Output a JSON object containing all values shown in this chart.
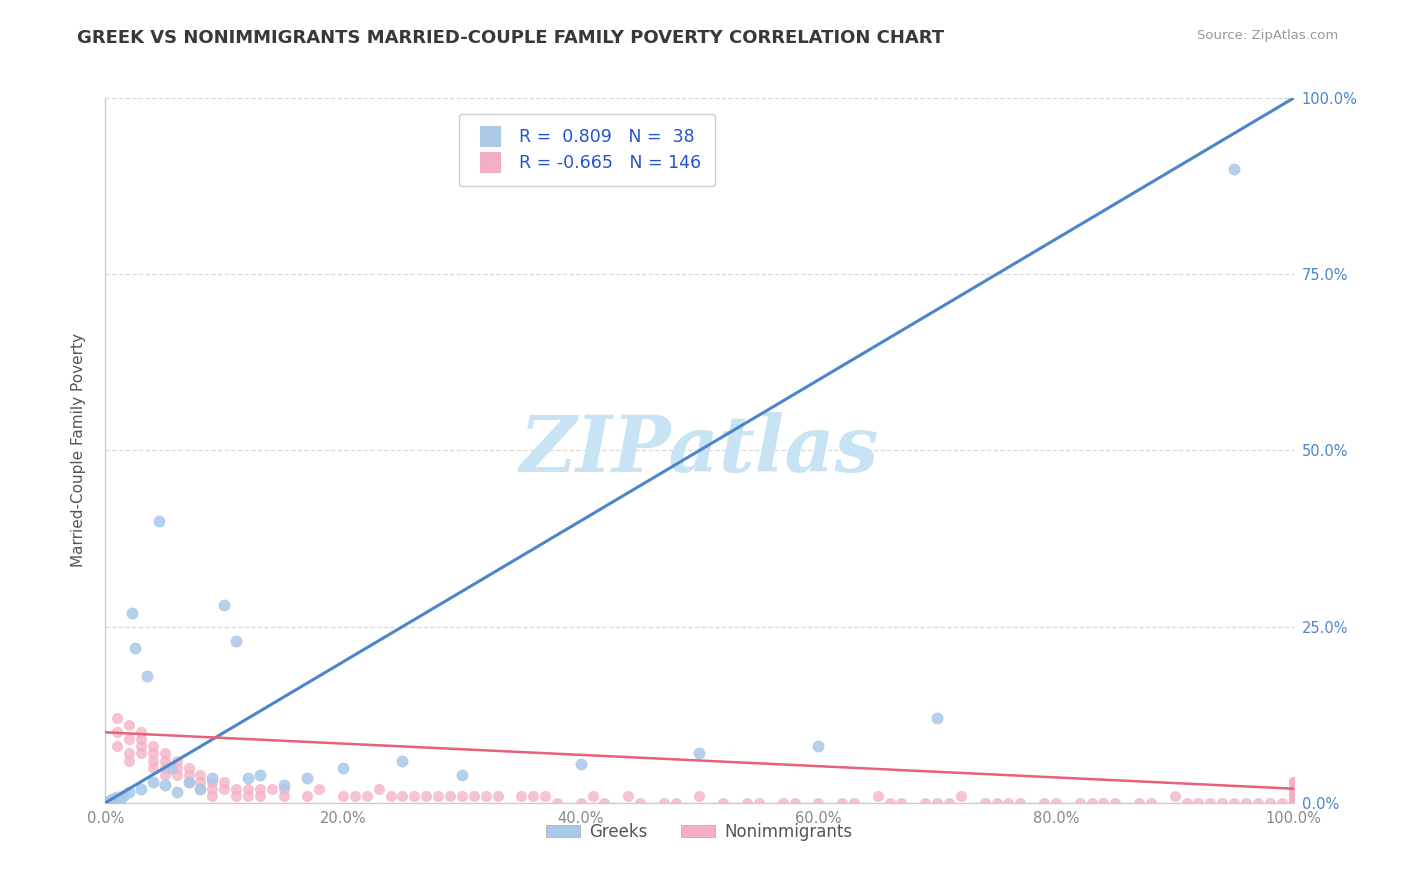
{
  "title": "GREEK VS NONIMMIGRANTS MARRIED-COUPLE FAMILY POVERTY CORRELATION CHART",
  "source": "Source: ZipAtlas.com",
  "ylabel": "Married-Couple Family Poverty",
  "xlim": [
    0,
    100
  ],
  "ylim": [
    0,
    100
  ],
  "xticks": [
    0,
    20,
    40,
    60,
    80,
    100
  ],
  "yticks": [
    0,
    25,
    50,
    75,
    100
  ],
  "xticklabels": [
    "0.0%",
    "20.0%",
    "40.0%",
    "60.0%",
    "80.0%",
    "100.0%"
  ],
  "yticklabels": [
    "0.0%",
    "25.0%",
    "50.0%",
    "75.0%",
    "100.0%"
  ],
  "greek_R": 0.809,
  "greek_N": 38,
  "nonimm_R": -0.665,
  "nonimm_N": 146,
  "greek_color": "#aac8e8",
  "nonimm_color": "#f5afc5",
  "greek_line_color": "#4a86c8",
  "nonimm_line_color": "#e8607a",
  "background_color": "#ffffff",
  "grid_color": "#d8d8d8",
  "title_color": "#383838",
  "axis_label_color": "#555555",
  "tick_color_x": "#888888",
  "tick_color_y": "#4a86c8",
  "legend_R_color": "#2255cc",
  "watermark_color": "#c8e4f4",
  "greek_line_x": [
    0,
    100
  ],
  "greek_line_y": [
    0,
    100
  ],
  "nonimm_line_x": [
    0,
    100
  ],
  "nonimm_line_y": [
    10,
    2
  ],
  "greek_x": [
    0.3,
    0.4,
    0.5,
    0.6,
    0.7,
    0.8,
    0.9,
    1.0,
    1.1,
    1.2,
    1.5,
    2.0,
    2.2,
    2.5,
    3.0,
    3.5,
    4.0,
    4.5,
    5.0,
    5.5,
    6.0,
    7.0,
    8.0,
    9.0,
    10.0,
    11.0,
    12.0,
    13.0,
    15.0,
    17.0,
    20.0,
    25.0,
    30.0,
    40.0,
    50.0,
    60.0,
    70.0,
    95.0
  ],
  "greek_y": [
    0.2,
    0.3,
    0.4,
    0.5,
    0.3,
    0.6,
    0.4,
    0.8,
    0.5,
    0.6,
    1.0,
    1.5,
    27.0,
    22.0,
    2.0,
    18.0,
    3.0,
    40.0,
    2.5,
    5.0,
    1.5,
    3.0,
    2.0,
    3.5,
    28.0,
    23.0,
    3.5,
    4.0,
    2.5,
    3.5,
    5.0,
    6.0,
    4.0,
    5.5,
    7.0,
    8.0,
    12.0,
    90.0
  ],
  "nonimm_x": [
    1,
    1,
    1,
    2,
    2,
    2,
    2,
    3,
    3,
    3,
    3,
    4,
    4,
    4,
    4,
    5,
    5,
    5,
    5,
    6,
    6,
    6,
    7,
    7,
    7,
    8,
    8,
    8,
    9,
    9,
    9,
    10,
    10,
    11,
    11,
    12,
    12,
    13,
    13,
    14,
    15,
    15,
    17,
    18,
    20,
    21,
    22,
    23,
    24,
    25,
    26,
    27,
    28,
    29,
    30,
    31,
    32,
    33,
    35,
    36,
    37,
    38,
    40,
    41,
    42,
    44,
    45,
    47,
    48,
    50,
    52,
    54,
    55,
    57,
    58,
    60,
    62,
    63,
    65,
    66,
    67,
    69,
    70,
    71,
    72,
    74,
    75,
    76,
    77,
    79,
    80,
    82,
    83,
    84,
    85,
    87,
    88,
    90,
    91,
    92,
    93,
    94,
    95,
    96,
    97,
    98,
    99,
    100,
    100,
    100,
    100,
    100,
    100,
    100,
    100,
    100,
    100,
    100,
    100,
    100,
    100,
    100,
    100,
    100,
    100,
    100,
    100,
    100,
    100,
    100,
    100,
    100,
    100,
    100,
    100,
    100,
    100,
    100,
    100,
    100,
    100,
    100,
    100,
    100,
    100,
    100
  ],
  "nonimm_y": [
    8,
    10,
    12,
    7,
    9,
    11,
    6,
    8,
    10,
    7,
    9,
    5,
    7,
    8,
    6,
    5,
    6,
    7,
    4,
    5,
    4,
    6,
    4,
    5,
    3,
    4,
    3,
    2,
    3,
    2,
    1,
    2,
    3,
    2,
    1,
    2,
    1,
    2,
    1,
    2,
    1,
    2,
    1,
    2,
    1,
    1,
    1,
    2,
    1,
    1,
    1,
    1,
    1,
    1,
    1,
    1,
    1,
    1,
    1,
    1,
    1,
    0,
    0,
    1,
    0,
    1,
    0,
    0,
    0,
    1,
    0,
    0,
    0,
    0,
    0,
    0,
    0,
    0,
    1,
    0,
    0,
    0,
    0,
    0,
    1,
    0,
    0,
    0,
    0,
    0,
    0,
    0,
    0,
    0,
    0,
    0,
    0,
    1,
    0,
    0,
    0,
    0,
    0,
    0,
    0,
    0,
    0,
    2,
    2,
    2,
    2,
    2,
    2,
    1,
    1,
    2,
    3,
    2,
    1,
    2,
    3,
    3,
    2,
    1,
    2,
    2,
    1,
    2,
    3,
    2,
    1,
    2,
    2,
    1,
    0,
    0,
    1,
    0,
    0,
    0,
    0,
    0,
    0,
    0,
    0,
    0
  ]
}
